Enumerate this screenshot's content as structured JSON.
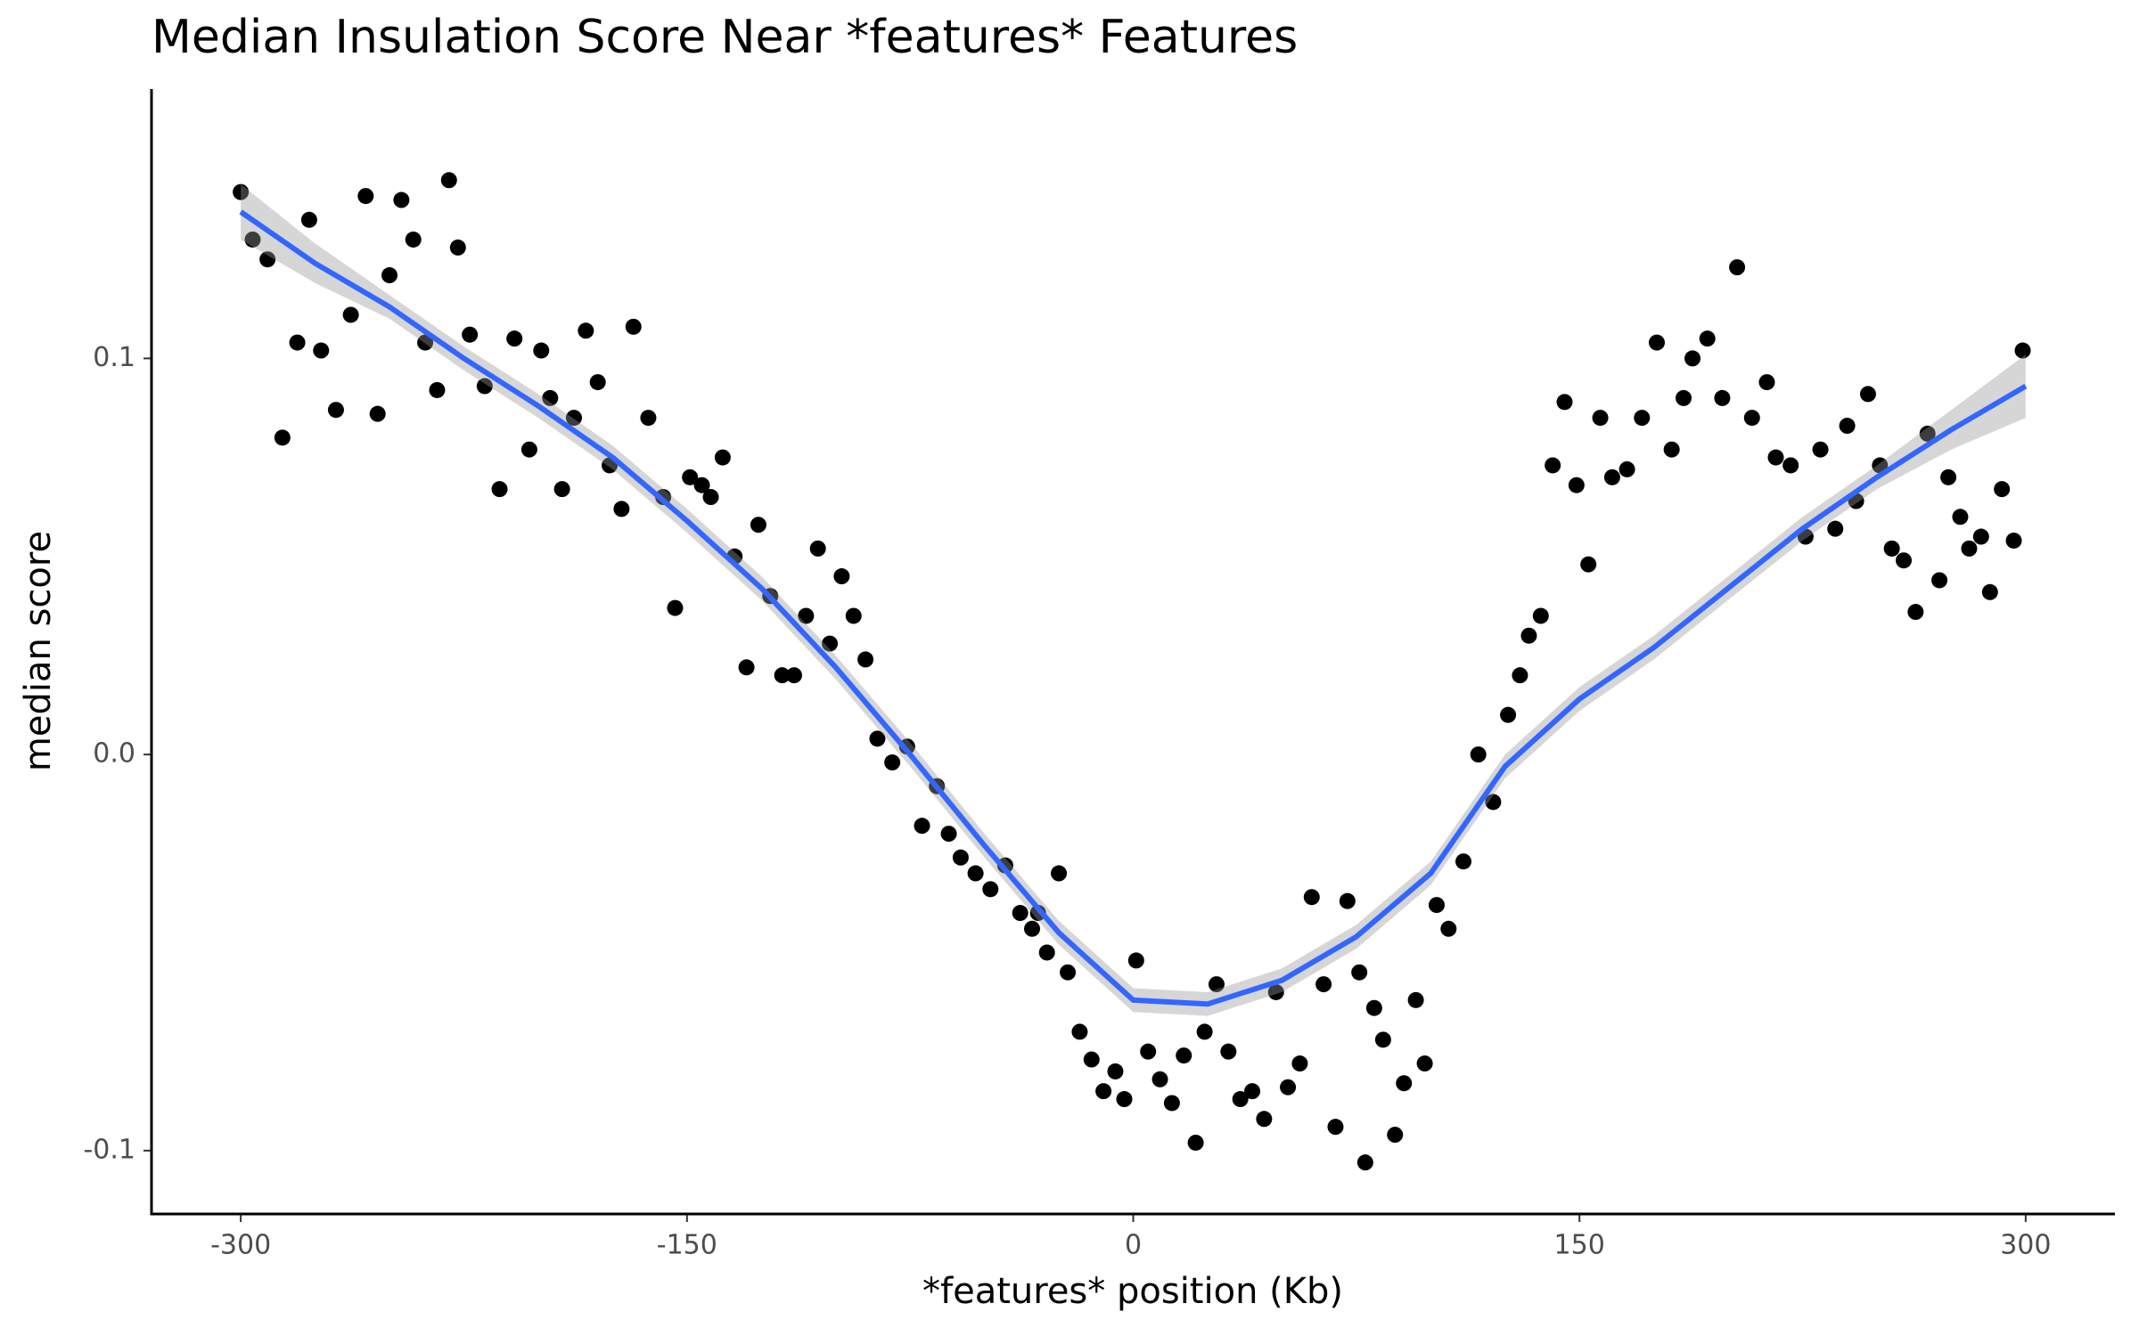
{
  "chart_data": {
    "type": "scatter",
    "title": "Median Insulation Score Near *features* Features",
    "x_label": "*features* position (Kb)",
    "y_label": "median score",
    "x": [
      -300,
      -296,
      -291,
      -286,
      -281,
      -277,
      -273,
      -268,
      -263,
      -258,
      -254,
      -250,
      -246,
      -242,
      -238,
      -234,
      -230,
      -227,
      -223,
      -218,
      -213,
      -208,
      -203,
      -199,
      -196,
      -192,
      -188,
      -184,
      -180,
      -176,
      -172,
      -168,
      -163,
      -158,
      -154,
      -149,
      -145,
      -142,
      -138,
      -134,
      -130,
      -126,
      -122,
      -118,
      -114,
      -110,
      -106,
      -102,
      -98,
      -94,
      -90,
      -86,
      -81,
      -76,
      -71,
      -66,
      -62,
      -58,
      -53,
      -48,
      -43,
      -38,
      -34,
      -32,
      -29,
      -25,
      -22,
      -18,
      -14,
      -10,
      -6,
      -3,
      1,
      5,
      9,
      13,
      17,
      21,
      24,
      28,
      32,
      36,
      40,
      44,
      48,
      52,
      56,
      60,
      64,
      68,
      72,
      76,
      78,
      81,
      84,
      88,
      91,
      95,
      98,
      102,
      106,
      111,
      116,
      121,
      126,
      130,
      133,
      137,
      141,
      145,
      149,
      153,
      157,
      161,
      166,
      171,
      176,
      181,
      185,
      188,
      193,
      198,
      203,
      208,
      213,
      216,
      221,
      226,
      231,
      236,
      240,
      243,
      247,
      251,
      255,
      259,
      263,
      267,
      271,
      274,
      278,
      281,
      285,
      288,
      292,
      296,
      299
    ],
    "values": [
      0.142,
      0.13,
      0.125,
      0.08,
      0.104,
      0.135,
      0.102,
      0.087,
      0.111,
      0.141,
      0.086,
      0.121,
      0.14,
      0.13,
      0.104,
      0.092,
      0.145,
      0.128,
      0.106,
      0.093,
      0.067,
      0.105,
      0.077,
      0.102,
      0.09,
      0.067,
      0.085,
      0.107,
      0.094,
      0.073,
      0.062,
      0.108,
      0.085,
      0.065,
      0.037,
      0.07,
      0.068,
      0.065,
      0.075,
      0.05,
      0.022,
      0.058,
      0.04,
      0.02,
      0.02,
      0.035,
      0.052,
      0.028,
      0.045,
      0.035,
      0.024,
      0.004,
      -0.002,
      0.002,
      -0.018,
      -0.008,
      -0.02,
      -0.026,
      -0.03,
      -0.034,
      -0.028,
      -0.04,
      -0.044,
      -0.04,
      -0.05,
      -0.03,
      -0.055,
      -0.07,
      -0.077,
      -0.085,
      -0.08,
      -0.087,
      -0.052,
      -0.075,
      -0.082,
      -0.088,
      -0.076,
      -0.098,
      -0.07,
      -0.058,
      -0.075,
      -0.087,
      -0.085,
      -0.092,
      -0.06,
      -0.084,
      -0.078,
      -0.036,
      -0.058,
      -0.094,
      -0.037,
      -0.055,
      -0.103,
      -0.064,
      -0.072,
      -0.096,
      -0.083,
      -0.062,
      -0.078,
      -0.038,
      -0.044,
      -0.027,
      0.0,
      -0.012,
      0.01,
      0.02,
      0.03,
      0.035,
      0.073,
      0.089,
      0.068,
      0.048,
      0.085,
      0.07,
      0.072,
      0.085,
      0.104,
      0.077,
      0.09,
      0.1,
      0.105,
      0.09,
      0.123,
      0.085,
      0.094,
      0.075,
      0.073,
      0.055,
      0.077,
      0.057,
      0.083,
      0.064,
      0.091,
      0.073,
      0.052,
      0.049,
      0.036,
      0.081,
      0.044,
      0.07,
      0.06,
      0.052,
      0.055,
      0.041,
      0.067,
      0.054,
      0.102
    ],
    "color": "#000000",
    "smooth": {
      "x": [
        -300,
        -275,
        -250,
        -225,
        -200,
        -175,
        -150,
        -125,
        -100,
        -75,
        -50,
        -25,
        0,
        25,
        50,
        75,
        100,
        125,
        150,
        175,
        200,
        225,
        250,
        275,
        300
      ],
      "values": [
        0.137,
        0.124,
        0.113,
        0.1,
        0.088,
        0.075,
        0.059,
        0.042,
        0.022,
        0.0,
        -0.023,
        -0.045,
        -0.062,
        -0.063,
        -0.057,
        -0.046,
        -0.03,
        -0.003,
        0.014,
        0.027,
        0.042,
        0.057,
        0.07,
        0.082,
        0.093
      ],
      "lower": [
        0.13,
        0.119,
        0.11,
        0.097,
        0.085,
        0.072,
        0.056,
        0.039,
        0.019,
        -0.003,
        -0.026,
        -0.048,
        -0.065,
        -0.066,
        -0.06,
        -0.049,
        -0.033,
        -0.006,
        0.011,
        0.024,
        0.039,
        0.054,
        0.067,
        0.077,
        0.085
      ],
      "upper": [
        0.144,
        0.129,
        0.116,
        0.103,
        0.091,
        0.078,
        0.062,
        0.045,
        0.025,
        0.003,
        -0.02,
        -0.042,
        -0.059,
        -0.06,
        -0.054,
        -0.043,
        -0.027,
        0.0,
        0.017,
        0.03,
        0.045,
        0.06,
        0.073,
        0.087,
        0.101
      ],
      "color": "#3366ff",
      "band_color": "#999999"
    },
    "xlim": [
      -330,
      330
    ],
    "ylim": [
      -0.116,
      0.168
    ],
    "xticks": [
      -300,
      -150,
      0,
      150,
      300
    ],
    "yticks": [
      -0.1,
      {
        "value": 0,
        "label": "0.0"
      },
      0.1
    ],
    "grid": false
  }
}
